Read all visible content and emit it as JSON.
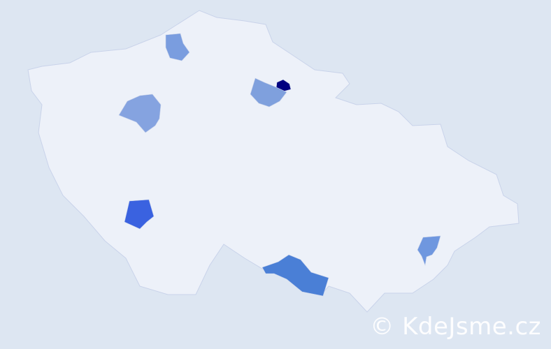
{
  "map": {
    "country_fill": "#edf1f9",
    "border_color": "#c9d3ea",
    "background": "#dde6f2",
    "regions": [
      {
        "id": "north-east-small",
        "color": "#000080"
      },
      {
        "id": "north-east",
        "color": "#7fa0dd"
      },
      {
        "id": "north",
        "color": "#7a9ddf"
      },
      {
        "id": "north-west",
        "color": "#85a3e0"
      },
      {
        "id": "south-west",
        "color": "#3a62e0"
      },
      {
        "id": "south",
        "color": "#4a7fd6"
      },
      {
        "id": "south-east",
        "color": "#6f97df"
      }
    ]
  },
  "watermark": "© KdeJsme.cz"
}
